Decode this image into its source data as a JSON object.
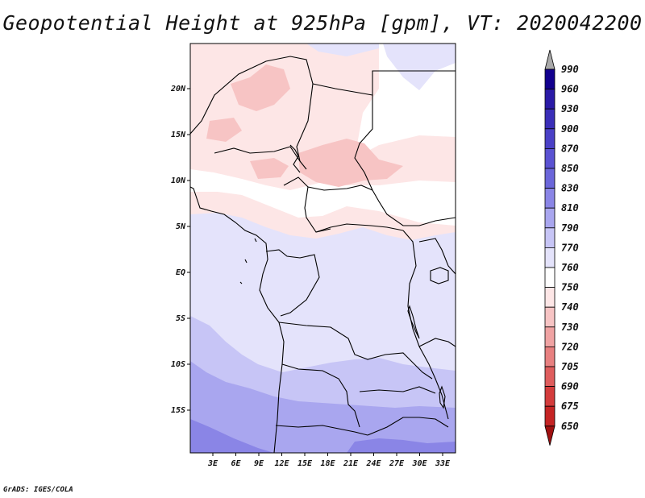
{
  "title": "Geopotential Height at 925hPa [gpm], VT: 2020042200",
  "footer": "GrADS: IGES/COLA",
  "map": {
    "lat_labels": [
      "20N",
      "15N",
      "10N",
      "5N",
      "EQ",
      "5S",
      "10S",
      "15S"
    ],
    "lon_labels": [
      "3E",
      "6E",
      "9E",
      "12E",
      "15E",
      "18E",
      "21E",
      "24E",
      "27E",
      "30E",
      "33E"
    ],
    "lon_range": [
      0,
      35
    ],
    "lat_range": [
      -20,
      25
    ]
  },
  "colorbar": {
    "levels": [
      "990",
      "960",
      "930",
      "900",
      "870",
      "850",
      "830",
      "810",
      "790",
      "770",
      "760",
      "750",
      "740",
      "730",
      "720",
      "705",
      "690",
      "675",
      "650"
    ],
    "colors": [
      "#12008e",
      "#2a1aa6",
      "#3a2eb8",
      "#4a40c6",
      "#5a52d2",
      "#6b66da",
      "#8a85e6",
      "#a9a6ef",
      "#c7c5f6",
      "#e4e3fb",
      "#ffffff",
      "#fde6e6",
      "#f7c4c4",
      "#f0a3a3",
      "#e88080",
      "#df5d5d",
      "#d43c3c",
      "#c52424",
      "#a90e0e"
    ],
    "top_arrow_color": "#a9a9a9",
    "bottom_arrow_color": "#a01010"
  }
}
